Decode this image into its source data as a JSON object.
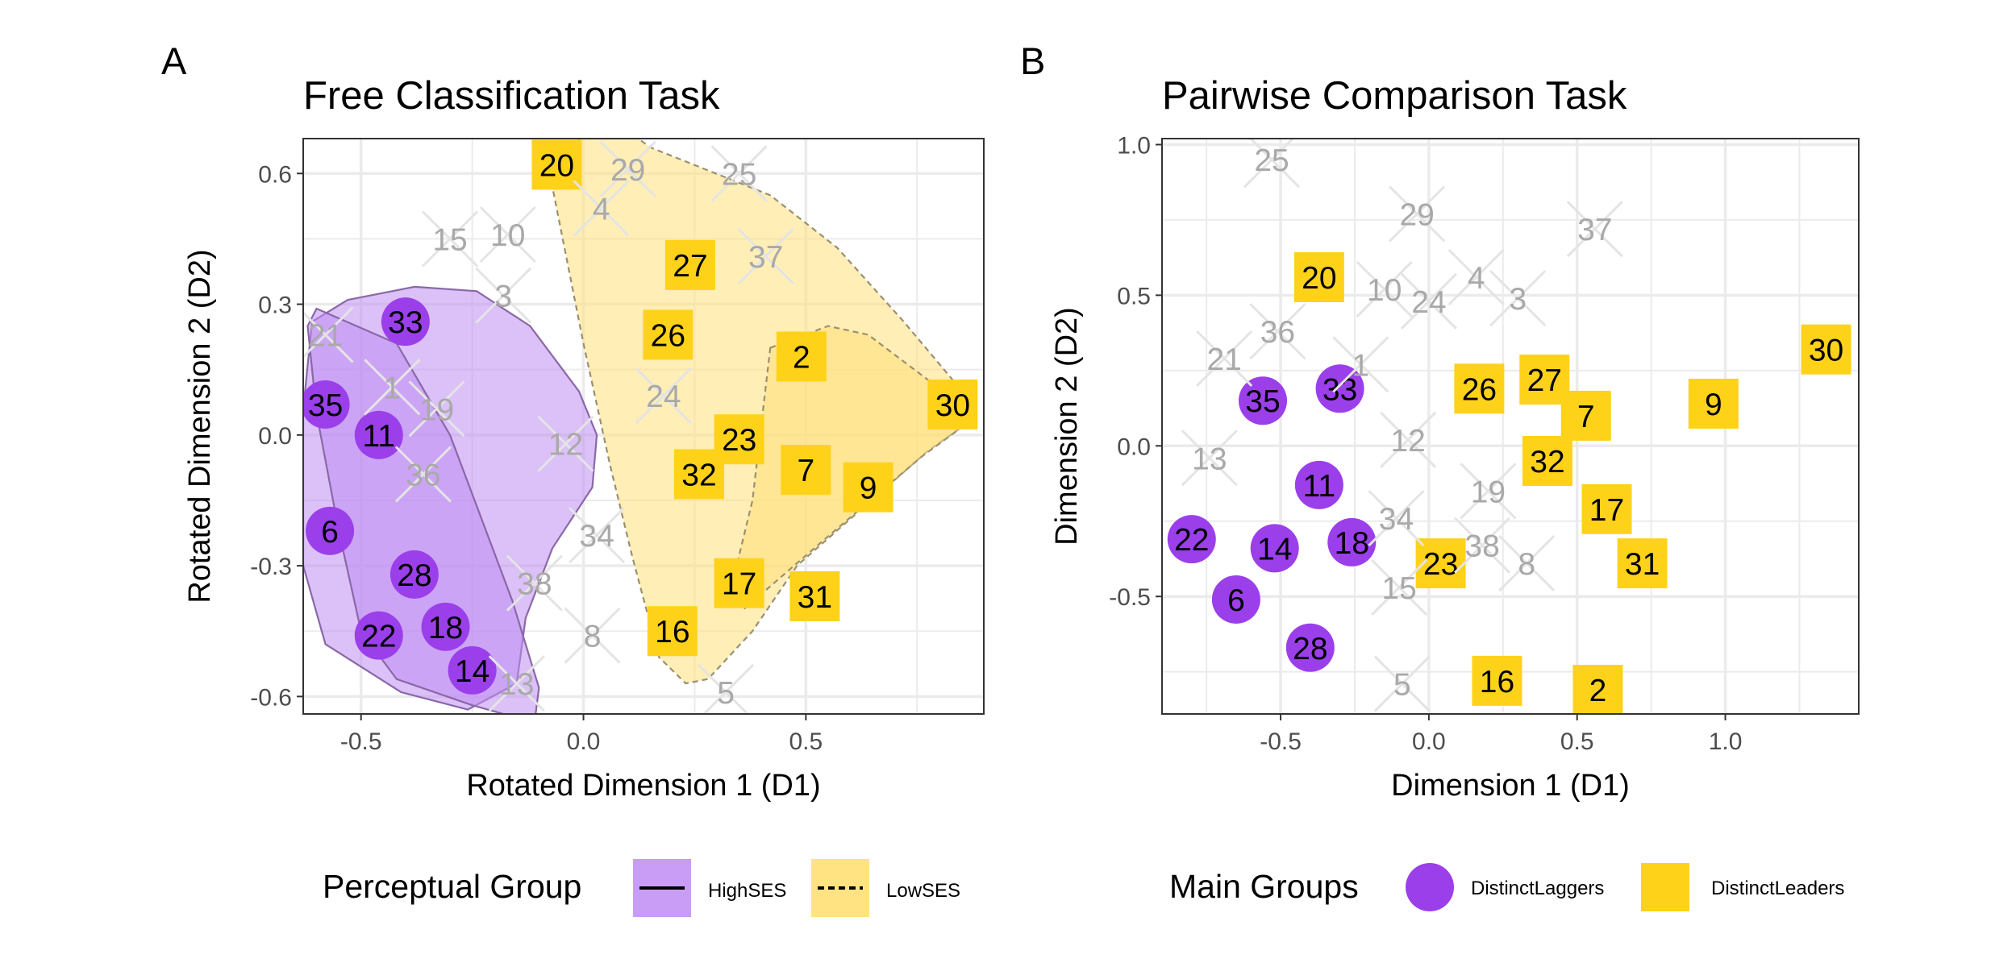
{
  "colors": {
    "laggers": "#9B3FEA",
    "leaders": "#FFD21A",
    "high_ses_fill": "#C08CF3",
    "low_ses_fill": "#FFE07A",
    "other": "#BDBDBD",
    "grid": "#EBEBEB"
  },
  "chart_data": [
    {
      "type": "scatter",
      "panel_tag": "A",
      "title": "Free Classification Task",
      "xlabel": "Rotated Dimension 1 (D1)",
      "ylabel": "Rotated Dimension 2 (D2)",
      "xlim": [
        -0.63,
        0.9
      ],
      "ylim": [
        -0.64,
        0.68
      ],
      "xticks": [
        -0.5,
        0.0,
        0.5
      ],
      "xtick_labels": [
        "-0.5",
        "0.0",
        "0.5"
      ],
      "yticks": [
        0.6,
        0.3,
        0.0,
        -0.3,
        -0.6
      ],
      "ytick_labels": [
        "0.6",
        "0.3",
        "0.0",
        "-0.3",
        "-0.6"
      ],
      "grid": true,
      "legend": {
        "title": "Perceptual Group",
        "position": "bottom",
        "items": [
          {
            "label": "HighSES",
            "linetype": "solid",
            "fill": "#C08CF3"
          },
          {
            "label": "LowSES",
            "linetype": "dashed",
            "fill": "#FFE07A"
          }
        ]
      },
      "hulls": [
        {
          "name": "HighSES",
          "linetype": "solid",
          "points": [
            [
              -0.38,
              0.34
            ],
            [
              -0.24,
              0.33
            ],
            [
              -0.12,
              0.25
            ],
            [
              -0.01,
              0.1
            ],
            [
              0.03,
              0.0
            ],
            [
              0.02,
              -0.12
            ],
            [
              -0.07,
              -0.26
            ],
            [
              -0.13,
              -0.42
            ],
            [
              -0.15,
              -0.57
            ],
            [
              -0.26,
              -0.63
            ],
            [
              -0.41,
              -0.59
            ],
            [
              -0.58,
              -0.48
            ],
            [
              -0.63,
              -0.3
            ],
            [
              -0.63,
              0.06
            ],
            [
              -0.61,
              0.26
            ],
            [
              -0.53,
              0.31
            ]
          ]
        },
        {
          "name": "HighSES",
          "linetype": "solid",
          "points": [
            [
              -0.6,
              0.29
            ],
            [
              -0.42,
              0.21
            ],
            [
              -0.3,
              0.0
            ],
            [
              -0.16,
              -0.38
            ],
            [
              -0.1,
              -0.58
            ],
            [
              -0.11,
              -0.66
            ],
            [
              -0.25,
              -0.62
            ],
            [
              -0.42,
              -0.56
            ],
            [
              -0.5,
              -0.45
            ],
            [
              -0.55,
              -0.22
            ],
            [
              -0.6,
              0.05
            ],
            [
              -0.62,
              0.25
            ]
          ]
        },
        {
          "name": "LowSES",
          "linetype": "dashed",
          "points": [
            [
              -0.07,
              0.57
            ],
            [
              0.03,
              0.75
            ],
            [
              0.15,
              0.66
            ],
            [
              0.42,
              0.55
            ],
            [
              0.57,
              0.43
            ],
            [
              0.72,
              0.26
            ],
            [
              0.86,
              0.09
            ],
            [
              0.88,
              0.04
            ],
            [
              0.77,
              -0.04
            ],
            [
              0.48,
              -0.3
            ],
            [
              0.38,
              -0.45
            ],
            [
              0.28,
              -0.56
            ],
            [
              0.23,
              -0.57
            ],
            [
              0.17,
              -0.51
            ],
            [
              0.11,
              -0.28
            ],
            [
              0.06,
              -0.07
            ],
            [
              0.0,
              0.21
            ]
          ]
        },
        {
          "name": "LowSES",
          "linetype": "dashed",
          "points": [
            [
              0.42,
              0.2
            ],
            [
              0.55,
              0.25
            ],
            [
              0.64,
              0.23
            ],
            [
              0.77,
              0.13
            ],
            [
              0.88,
              0.04
            ],
            [
              0.76,
              -0.05
            ],
            [
              0.53,
              -0.25
            ],
            [
              0.36,
              -0.4
            ],
            [
              0.33,
              -0.36
            ],
            [
              0.38,
              -0.15
            ]
          ]
        }
      ],
      "points": [
        {
          "label": "20",
          "group": "DistinctLeaders",
          "x": -0.06,
          "y": 0.62
        },
        {
          "label": "27",
          "group": "DistinctLeaders",
          "x": 0.24,
          "y": 0.39
        },
        {
          "label": "26",
          "group": "DistinctLeaders",
          "x": 0.19,
          "y": 0.23
        },
        {
          "label": "2",
          "group": "DistinctLeaders",
          "x": 0.49,
          "y": 0.18
        },
        {
          "label": "30",
          "group": "DistinctLeaders",
          "x": 0.83,
          "y": 0.07
        },
        {
          "label": "23",
          "group": "DistinctLeaders",
          "x": 0.35,
          "y": -0.01
        },
        {
          "label": "32",
          "group": "DistinctLeaders",
          "x": 0.26,
          "y": -0.09
        },
        {
          "label": "7",
          "group": "DistinctLeaders",
          "x": 0.5,
          "y": -0.08
        },
        {
          "label": "9",
          "group": "DistinctLeaders",
          "x": 0.64,
          "y": -0.12
        },
        {
          "label": "17",
          "group": "DistinctLeaders",
          "x": 0.35,
          "y": -0.34
        },
        {
          "label": "31",
          "group": "DistinctLeaders",
          "x": 0.52,
          "y": -0.37
        },
        {
          "label": "16",
          "group": "DistinctLeaders",
          "x": 0.2,
          "y": -0.45
        },
        {
          "label": "33",
          "group": "DistinctLaggers",
          "x": -0.4,
          "y": 0.26
        },
        {
          "label": "35",
          "group": "DistinctLaggers",
          "x": -0.58,
          "y": 0.07
        },
        {
          "label": "11",
          "group": "DistinctLaggers",
          "x": -0.46,
          "y": 0.0
        },
        {
          "label": "6",
          "group": "DistinctLaggers",
          "x": -0.57,
          "y": -0.22
        },
        {
          "label": "28",
          "group": "DistinctLaggers",
          "x": -0.38,
          "y": -0.32
        },
        {
          "label": "18",
          "group": "DistinctLaggers",
          "x": -0.31,
          "y": -0.44
        },
        {
          "label": "22",
          "group": "DistinctLaggers",
          "x": -0.46,
          "y": -0.46
        },
        {
          "label": "14",
          "group": "DistinctLaggers",
          "x": -0.25,
          "y": -0.54
        },
        {
          "label": "29",
          "group": "Other",
          "x": 0.1,
          "y": 0.61
        },
        {
          "label": "25",
          "group": "Other",
          "x": 0.35,
          "y": 0.6
        },
        {
          "label": "4",
          "group": "Other",
          "x": 0.04,
          "y": 0.52
        },
        {
          "label": "15",
          "group": "Other",
          "x": -0.3,
          "y": 0.45
        },
        {
          "label": "10",
          "group": "Other",
          "x": -0.17,
          "y": 0.46
        },
        {
          "label": "37",
          "group": "Other",
          "x": 0.41,
          "y": 0.41
        },
        {
          "label": "3",
          "group": "Other",
          "x": -0.18,
          "y": 0.32
        },
        {
          "label": "21",
          "group": "Other",
          "x": -0.58,
          "y": 0.23
        },
        {
          "label": "1",
          "group": "Other",
          "x": -0.43,
          "y": 0.11
        },
        {
          "label": "19",
          "group": "Other",
          "x": -0.33,
          "y": 0.06
        },
        {
          "label": "24",
          "group": "Other",
          "x": 0.18,
          "y": 0.09
        },
        {
          "label": "12",
          "group": "Other",
          "x": -0.04,
          "y": -0.02
        },
        {
          "label": "36",
          "group": "Other",
          "x": -0.36,
          "y": -0.09
        },
        {
          "label": "34",
          "group": "Other",
          "x": 0.03,
          "y": -0.23
        },
        {
          "label": "38",
          "group": "Other",
          "x": -0.11,
          "y": -0.34
        },
        {
          "label": "8",
          "group": "Other",
          "x": 0.02,
          "y": -0.46
        },
        {
          "label": "13",
          "group": "Other",
          "x": -0.15,
          "y": -0.57
        },
        {
          "label": "5",
          "group": "Other",
          "x": 0.32,
          "y": -0.59
        }
      ]
    },
    {
      "type": "scatter",
      "panel_tag": "B",
      "title": "Pairwise Comparison Task",
      "xlabel": "Dimension 1 (D1)",
      "ylabel": "Dimension 2 (D2)",
      "xlim": [
        -0.9,
        1.45
      ],
      "ylim": [
        -0.89,
        1.02
      ],
      "xticks": [
        -0.5,
        0.0,
        0.5,
        1.0
      ],
      "xtick_labels": [
        "-0.5",
        "0.0",
        "0.5",
        "1.0"
      ],
      "yticks": [
        1.0,
        0.5,
        0.0,
        -0.5
      ],
      "ytick_labels": [
        "1.0",
        "0.5",
        "0.0",
        "-0.5"
      ],
      "grid": true,
      "legend": {
        "title": "Main Groups",
        "position": "bottom",
        "items": [
          {
            "label": "DistinctLaggers",
            "shape": "circle",
            "color": "#9B3FEA"
          },
          {
            "label": "DistinctLeaders",
            "shape": "square",
            "color": "#FFD21A"
          }
        ]
      },
      "points": [
        {
          "label": "20",
          "group": "DistinctLeaders",
          "x": -0.37,
          "y": 0.56
        },
        {
          "label": "30",
          "group": "DistinctLeaders",
          "x": 1.34,
          "y": 0.32
        },
        {
          "label": "26",
          "group": "DistinctLeaders",
          "x": 0.17,
          "y": 0.19
        },
        {
          "label": "27",
          "group": "DistinctLeaders",
          "x": 0.39,
          "y": 0.22
        },
        {
          "label": "7",
          "group": "DistinctLeaders",
          "x": 0.53,
          "y": 0.1
        },
        {
          "label": "9",
          "group": "DistinctLeaders",
          "x": 0.96,
          "y": 0.14
        },
        {
          "label": "32",
          "group": "DistinctLeaders",
          "x": 0.4,
          "y": -0.05
        },
        {
          "label": "17",
          "group": "DistinctLeaders",
          "x": 0.6,
          "y": -0.21
        },
        {
          "label": "31",
          "group": "DistinctLeaders",
          "x": 0.72,
          "y": -0.39
        },
        {
          "label": "23",
          "group": "DistinctLeaders",
          "x": 0.04,
          "y": -0.39
        },
        {
          "label": "16",
          "group": "DistinctLeaders",
          "x": 0.23,
          "y": -0.78
        },
        {
          "label": "2",
          "group": "DistinctLeaders",
          "x": 0.57,
          "y": -0.81
        },
        {
          "label": "35",
          "group": "DistinctLaggers",
          "x": -0.56,
          "y": 0.15
        },
        {
          "label": "33",
          "group": "DistinctLaggers",
          "x": -0.3,
          "y": 0.19
        },
        {
          "label": "11",
          "group": "DistinctLaggers",
          "x": -0.37,
          "y": -0.13
        },
        {
          "label": "22",
          "group": "DistinctLaggers",
          "x": -0.8,
          "y": -0.31
        },
        {
          "label": "14",
          "group": "DistinctLaggers",
          "x": -0.52,
          "y": -0.34
        },
        {
          "label": "18",
          "group": "DistinctLaggers",
          "x": -0.26,
          "y": -0.32
        },
        {
          "label": "6",
          "group": "DistinctLaggers",
          "x": -0.65,
          "y": -0.51
        },
        {
          "label": "28",
          "group": "DistinctLaggers",
          "x": -0.4,
          "y": -0.67
        },
        {
          "label": "25",
          "group": "Other",
          "x": -0.53,
          "y": 0.95
        },
        {
          "label": "29",
          "group": "Other",
          "x": -0.04,
          "y": 0.77
        },
        {
          "label": "37",
          "group": "Other",
          "x": 0.56,
          "y": 0.72
        },
        {
          "label": "10",
          "group": "Other",
          "x": -0.15,
          "y": 0.52
        },
        {
          "label": "24",
          "group": "Other",
          "x": 0.0,
          "y": 0.48
        },
        {
          "label": "4",
          "group": "Other",
          "x": 0.16,
          "y": 0.56
        },
        {
          "label": "3",
          "group": "Other",
          "x": 0.3,
          "y": 0.49
        },
        {
          "label": "36",
          "group": "Other",
          "x": -0.51,
          "y": 0.38
        },
        {
          "label": "21",
          "group": "Other",
          "x": -0.69,
          "y": 0.29
        },
        {
          "label": "1",
          "group": "Other",
          "x": -0.23,
          "y": 0.27
        },
        {
          "label": "12",
          "group": "Other",
          "x": -0.07,
          "y": 0.02
        },
        {
          "label": "13",
          "group": "Other",
          "x": -0.74,
          "y": -0.04
        },
        {
          "label": "19",
          "group": "Other",
          "x": 0.2,
          "y": -0.15
        },
        {
          "label": "34",
          "group": "Other",
          "x": -0.11,
          "y": -0.24
        },
        {
          "label": "38",
          "group": "Other",
          "x": 0.18,
          "y": -0.33
        },
        {
          "label": "8",
          "group": "Other",
          "x": 0.33,
          "y": -0.39
        },
        {
          "label": "15",
          "group": "Other",
          "x": -0.1,
          "y": -0.47
        },
        {
          "label": "5",
          "group": "Other",
          "x": -0.09,
          "y": -0.79
        }
      ]
    }
  ]
}
